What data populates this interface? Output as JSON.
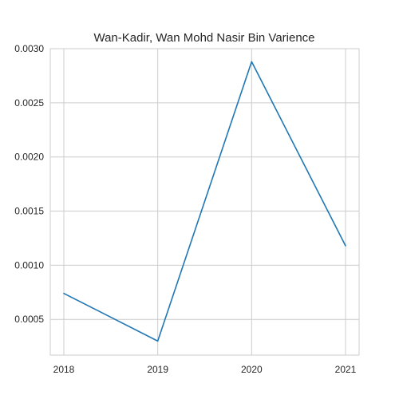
{
  "chart_data": {
    "type": "line",
    "title": "Wan-Kadir, Wan Mohd Nasir Bin Varience",
    "xlabel": "",
    "ylabel": "",
    "x": [
      "2018",
      "2019",
      "2020",
      "2021"
    ],
    "series": [
      {
        "values": [
          0.00074,
          0.0003,
          0.00288,
          0.00118
        ],
        "color": "#1f77b4"
      }
    ],
    "ylim": [
      0.00017,
      0.003
    ],
    "yticks": [
      0.0005,
      0.001,
      0.0015,
      0.002,
      0.0025,
      0.003
    ],
    "ytick_labels": [
      "0.0005",
      "0.0010",
      "0.0015",
      "0.0020",
      "0.0025",
      "0.0030"
    ],
    "grid": true,
    "legend": "none"
  }
}
